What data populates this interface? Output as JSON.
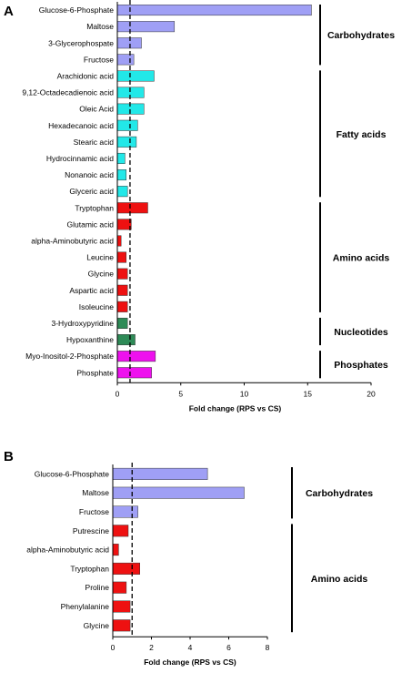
{
  "chart_data": [
    {
      "panel": "A",
      "type": "bar",
      "orientation": "horizontal",
      "xlabel": "Fold change (RPS vs CS)",
      "xlim": [
        0,
        20
      ],
      "xticks": [
        "0",
        "5",
        "10",
        "15",
        "20"
      ],
      "reference_line": 1,
      "categories": [
        "Glucose-6-Phosphate",
        "Maltose",
        "3-Glycerophospate",
        "Fructose",
        "Arachidonic acid",
        "9,12-Octadecadienoic acid",
        "Oleic Acid",
        "Hexadecanoic acid",
        "Stearic acid",
        "Hydrocinnamic acid",
        "Nonanoic acid",
        "Glyceric acid",
        "Tryptophan",
        "Glutamic acid",
        "alpha-Aminobutyric acid",
        "Leucine",
        "Glycine",
        "Aspartic acid",
        "Isoleucine",
        "3-Hydroxypyridine",
        "Hypoxanthine",
        "Myo-Inositol-2-Phosphate",
        "Phosphate"
      ],
      "values": [
        15.3,
        4.5,
        1.9,
        1.3,
        2.9,
        2.1,
        2.1,
        1.6,
        1.5,
        0.6,
        0.7,
        0.8,
        2.4,
        1.1,
        0.3,
        0.7,
        0.8,
        0.8,
        0.8,
        0.8,
        1.4,
        3.0,
        2.7
      ],
      "colors": [
        "#9f9ff5",
        "#9f9ff5",
        "#9f9ff5",
        "#9f9ff5",
        "#22e8e8",
        "#22e8e8",
        "#22e8e8",
        "#22e8e8",
        "#22e8e8",
        "#22e8e8",
        "#22e8e8",
        "#22e8e8",
        "#ee1111",
        "#ee1111",
        "#ee1111",
        "#ee1111",
        "#ee1111",
        "#ee1111",
        "#ee1111",
        "#2e8b57",
        "#2e8b57",
        "#ee11ee",
        "#ee11ee"
      ],
      "groups": [
        {
          "name": "Carbohydrates",
          "start": 0,
          "end": 3
        },
        {
          "name": "Fatty acids",
          "start": 4,
          "end": 11
        },
        {
          "name": "Amino acids",
          "start": 12,
          "end": 18
        },
        {
          "name": "Nucleotides",
          "start": 19,
          "end": 20
        },
        {
          "name": "Phosphates",
          "start": 21,
          "end": 22
        }
      ]
    },
    {
      "panel": "B",
      "type": "bar",
      "orientation": "horizontal",
      "xlabel": "Fold change (RPS vs CS)",
      "xlim": [
        0,
        8
      ],
      "xticks": [
        "0",
        "2",
        "4",
        "6",
        "8"
      ],
      "reference_line": 1,
      "categories": [
        "Glucose-6-Phosphate",
        "Maltose",
        "Fructose",
        "Putrescine",
        "alpha-Aminobutyric acid",
        "Tryptophan",
        "Proline",
        "Phenylalanine",
        "Glycine"
      ],
      "values": [
        4.9,
        6.8,
        1.3,
        0.8,
        0.3,
        1.4,
        0.7,
        0.9,
        0.9
      ],
      "colors": [
        "#9f9ff5",
        "#9f9ff5",
        "#9f9ff5",
        "#ee1111",
        "#ee1111",
        "#ee1111",
        "#ee1111",
        "#ee1111",
        "#ee1111"
      ],
      "groups": [
        {
          "name": "Carbohydrates",
          "start": 0,
          "end": 2
        },
        {
          "name": "Amino acids",
          "start": 3,
          "end": 8
        }
      ]
    }
  ]
}
